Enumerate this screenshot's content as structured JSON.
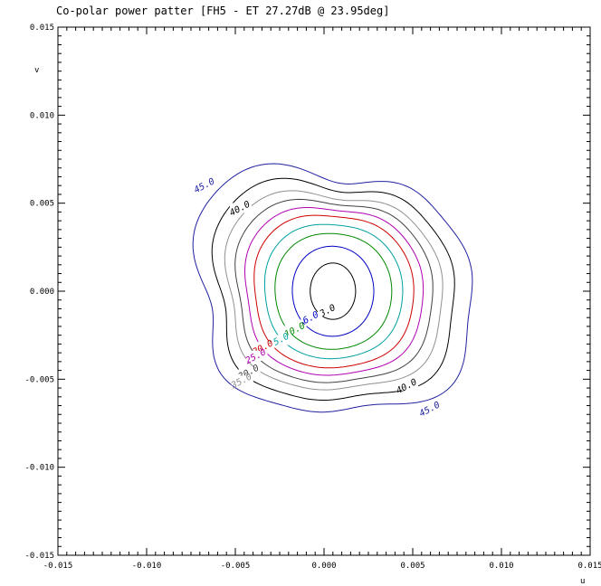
{
  "chart_data": {
    "type": "contour",
    "title": "Co-polar power patter [FH5 - ET 27.27dB @ 23.95deg]",
    "xlabel": "u",
    "ylabel": "v",
    "xlim": [
      -0.015,
      0.015
    ],
    "ylim": [
      -0.015,
      0.015
    ],
    "xticks": [
      "-0.015",
      "-0.010",
      "-0.005",
      "0.000",
      "0.005",
      "0.010",
      "0.015"
    ],
    "yticks": [
      "0.015",
      "0.010",
      "0.005",
      "0.000",
      "-0.005",
      "-0.010",
      "-0.015"
    ],
    "grid": false,
    "legend": "none",
    "center": [
      0.0005,
      0.0
    ],
    "levels": [
      {
        "label": "3.0",
        "color": "#000000",
        "rx": 0.00128,
        "ry": 0.0016,
        "labels": [
          [
            0.00025,
            -0.0012
          ]
        ]
      },
      {
        "label": "6.0",
        "color": "#0000c0",
        "rx": 0.0023,
        "ry": 0.0026,
        "labels": [
          [
            -0.0007,
            -0.0016
          ]
        ]
      },
      {
        "label": "10.0",
        "color": "#008800",
        "rx": 0.0033,
        "ry": 0.0034,
        "labels": [
          [
            -0.0016,
            -0.0023
          ]
        ]
      },
      {
        "label": "15.0",
        "color": "#00a0a0",
        "rx": 0.0039,
        "ry": 0.004,
        "labels": [
          [
            -0.0025,
            -0.0029
          ]
        ]
      },
      {
        "label": "20.0",
        "color": "#cc0000",
        "rx": 0.0045,
        "ry": 0.0046,
        "labels": [
          [
            -0.0034,
            -0.0033
          ]
        ]
      },
      {
        "label": "25.0",
        "color": "#b000b0",
        "rx": 0.005,
        "ry": 0.0051,
        "labels": [
          [
            -0.0038,
            -0.0038
          ]
        ]
      },
      {
        "label": "30.0",
        "color": "#404040",
        "rx": 0.0055,
        "ry": 0.0056,
        "labels": [
          [
            -0.0042,
            -0.0047
          ]
        ]
      },
      {
        "label": "35.0",
        "color": "#909090",
        "rx": 0.006,
        "ry": 0.0061,
        "labels": [
          [
            -0.0046,
            -0.0052
          ]
        ]
      },
      {
        "label": "40.0",
        "color": "#000000",
        "rx": 0.0066,
        "ry": 0.0068,
        "labels": [
          [
            -0.0047,
            0.0046
          ],
          [
            0.0047,
            -0.0055
          ]
        ]
      },
      {
        "label": "45.0",
        "color": "#2020a0",
        "rx": 0.0075,
        "ry": 0.0076,
        "labels": [
          [
            -0.0067,
            0.0059
          ],
          [
            0.006,
            -0.0068
          ]
        ]
      }
    ]
  }
}
